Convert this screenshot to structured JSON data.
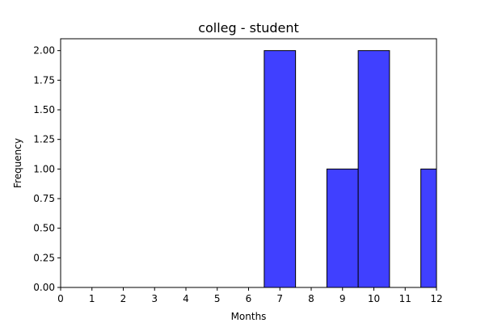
{
  "chart_data": {
    "type": "bar",
    "title": "colleg - student",
    "xlabel": "Months",
    "ylabel": "Frequency",
    "xlim": [
      0,
      12
    ],
    "ylim": [
      0,
      2.1
    ],
    "x_ticks": [
      "0",
      "1",
      "2",
      "3",
      "4",
      "5",
      "6",
      "7",
      "8",
      "9",
      "10",
      "11",
      "12"
    ],
    "y_ticks": [
      "0.00",
      "0.25",
      "0.50",
      "0.75",
      "1.00",
      "1.25",
      "1.50",
      "1.75",
      "2.00"
    ],
    "bins": [
      {
        "x0": 6.5,
        "x1": 7.5,
        "value": 2
      },
      {
        "x0": 8.5,
        "x1": 9.5,
        "value": 1
      },
      {
        "x0": 9.5,
        "x1": 10.5,
        "value": 2
      },
      {
        "x0": 11.5,
        "x1": 12.5,
        "value": 1
      }
    ],
    "bar_color": "#4040ff",
    "edge_color": "#000000",
    "grid": false,
    "legend": "none"
  }
}
